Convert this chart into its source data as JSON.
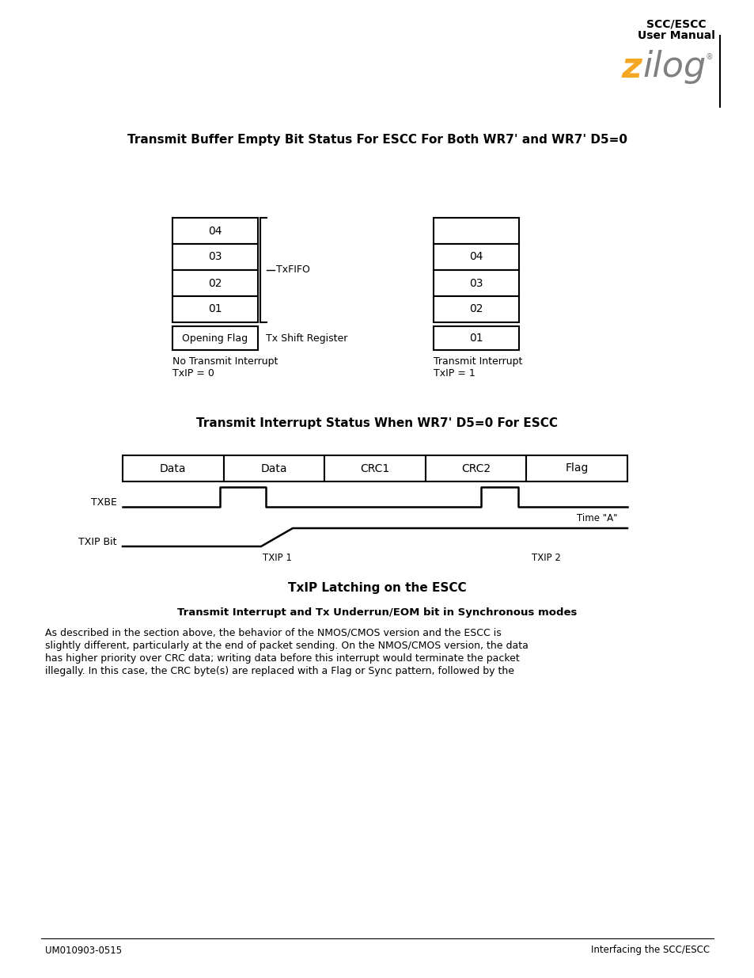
{
  "section_title1": "Transmit Buffer Empty Bit Status For ESCC For Both WR7' and WR7' D5=0",
  "section_title2": "Transmit Interrupt Status When WR7' D5=0 For ESCC",
  "section_title3": "TxIP Latching on the ESCC",
  "subsection_title": "Transmit Interrupt and Tx Underrun/EOM bit in Synchronous modes",
  "body_text": [
    "As described in the section above, the behavior of the NMOS/CMOS version and the ESCC is",
    "slightly different, particularly at the end of packet sending. On the NMOS/CMOS version, the data",
    "has higher priority over CRC data; writing data before this interrupt would terminate the packet",
    "illegally. In this case, the CRC byte(s) are replaced with a Flag or Sync pattern, followed by the"
  ],
  "footer_left": "UM010903-0515",
  "footer_right": "Interfacing the SCC/ESCC",
  "left_fifo_labels": [
    "04",
    "03",
    "02",
    "01"
  ],
  "right_fifo_labels": [
    "",
    "04",
    "03",
    "02"
  ],
  "txfifo_label": "TxFIFO",
  "opening_flag_label": "Opening Flag",
  "tx_shift_label": "Tx Shift Register",
  "right_bottom_label": "01",
  "no_transmit_label": "No Transmit Interrupt\nTxIP = 0",
  "transmit_label": "Transmit Interrupt\nTxIP = 1",
  "packet_segments": [
    "Data",
    "Data",
    "CRC1",
    "CRC2",
    "Flag"
  ],
  "txbe_label": "TXBE",
  "txip_label": "TXIP Bit",
  "txip1_label": "TXIP 1",
  "txip2_label": "TXIP 2",
  "time_a_label": "Time \"A\"",
  "header_line1": "SCC/ESCC",
  "header_line2": "User Manual",
  "zilog_z_color": "#f5a623",
  "zilog_ilog_color": "#808080",
  "bg_color": "#ffffff"
}
